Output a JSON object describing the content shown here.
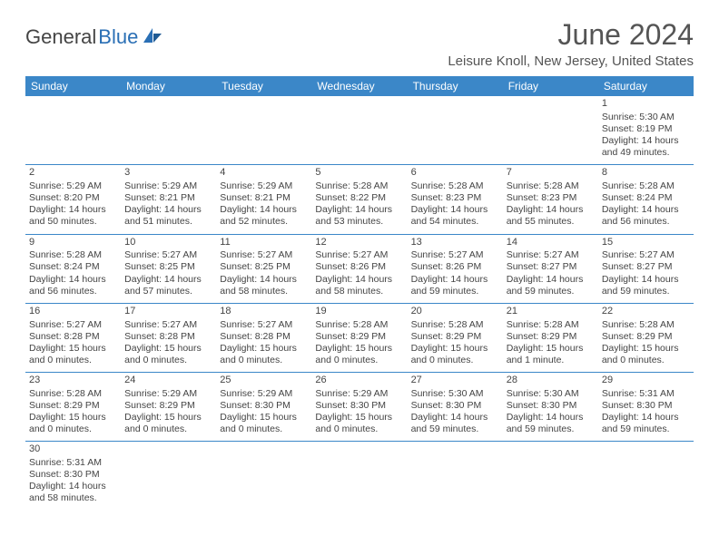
{
  "logo": {
    "part1": "General",
    "part2": "Blue"
  },
  "title": "June 2024",
  "location": "Leisure Knoll, New Jersey, United States",
  "colors": {
    "header_bg": "#3b87c8",
    "header_text": "#ffffff",
    "border": "#3b87c8",
    "text": "#444444",
    "logo_blue": "#2a6fb5"
  },
  "day_headers": [
    "Sunday",
    "Monday",
    "Tuesday",
    "Wednesday",
    "Thursday",
    "Friday",
    "Saturday"
  ],
  "weeks": [
    [
      null,
      null,
      null,
      null,
      null,
      null,
      {
        "n": "1",
        "sr": "5:30 AM",
        "ss": "8:19 PM",
        "dl": "14 hours and 49 minutes."
      }
    ],
    [
      {
        "n": "2",
        "sr": "5:29 AM",
        "ss": "8:20 PM",
        "dl": "14 hours and 50 minutes."
      },
      {
        "n": "3",
        "sr": "5:29 AM",
        "ss": "8:21 PM",
        "dl": "14 hours and 51 minutes."
      },
      {
        "n": "4",
        "sr": "5:29 AM",
        "ss": "8:21 PM",
        "dl": "14 hours and 52 minutes."
      },
      {
        "n": "5",
        "sr": "5:28 AM",
        "ss": "8:22 PM",
        "dl": "14 hours and 53 minutes."
      },
      {
        "n": "6",
        "sr": "5:28 AM",
        "ss": "8:23 PM",
        "dl": "14 hours and 54 minutes."
      },
      {
        "n": "7",
        "sr": "5:28 AM",
        "ss": "8:23 PM",
        "dl": "14 hours and 55 minutes."
      },
      {
        "n": "8",
        "sr": "5:28 AM",
        "ss": "8:24 PM",
        "dl": "14 hours and 56 minutes."
      }
    ],
    [
      {
        "n": "9",
        "sr": "5:28 AM",
        "ss": "8:24 PM",
        "dl": "14 hours and 56 minutes."
      },
      {
        "n": "10",
        "sr": "5:27 AM",
        "ss": "8:25 PM",
        "dl": "14 hours and 57 minutes."
      },
      {
        "n": "11",
        "sr": "5:27 AM",
        "ss": "8:25 PM",
        "dl": "14 hours and 58 minutes."
      },
      {
        "n": "12",
        "sr": "5:27 AM",
        "ss": "8:26 PM",
        "dl": "14 hours and 58 minutes."
      },
      {
        "n": "13",
        "sr": "5:27 AM",
        "ss": "8:26 PM",
        "dl": "14 hours and 59 minutes."
      },
      {
        "n": "14",
        "sr": "5:27 AM",
        "ss": "8:27 PM",
        "dl": "14 hours and 59 minutes."
      },
      {
        "n": "15",
        "sr": "5:27 AM",
        "ss": "8:27 PM",
        "dl": "14 hours and 59 minutes."
      }
    ],
    [
      {
        "n": "16",
        "sr": "5:27 AM",
        "ss": "8:28 PM",
        "dl": "15 hours and 0 minutes."
      },
      {
        "n": "17",
        "sr": "5:27 AM",
        "ss": "8:28 PM",
        "dl": "15 hours and 0 minutes."
      },
      {
        "n": "18",
        "sr": "5:27 AM",
        "ss": "8:28 PM",
        "dl": "15 hours and 0 minutes."
      },
      {
        "n": "19",
        "sr": "5:28 AM",
        "ss": "8:29 PM",
        "dl": "15 hours and 0 minutes."
      },
      {
        "n": "20",
        "sr": "5:28 AM",
        "ss": "8:29 PM",
        "dl": "15 hours and 0 minutes."
      },
      {
        "n": "21",
        "sr": "5:28 AM",
        "ss": "8:29 PM",
        "dl": "15 hours and 1 minute."
      },
      {
        "n": "22",
        "sr": "5:28 AM",
        "ss": "8:29 PM",
        "dl": "15 hours and 0 minutes."
      }
    ],
    [
      {
        "n": "23",
        "sr": "5:28 AM",
        "ss": "8:29 PM",
        "dl": "15 hours and 0 minutes."
      },
      {
        "n": "24",
        "sr": "5:29 AM",
        "ss": "8:29 PM",
        "dl": "15 hours and 0 minutes."
      },
      {
        "n": "25",
        "sr": "5:29 AM",
        "ss": "8:30 PM",
        "dl": "15 hours and 0 minutes."
      },
      {
        "n": "26",
        "sr": "5:29 AM",
        "ss": "8:30 PM",
        "dl": "15 hours and 0 minutes."
      },
      {
        "n": "27",
        "sr": "5:30 AM",
        "ss": "8:30 PM",
        "dl": "14 hours and 59 minutes."
      },
      {
        "n": "28",
        "sr": "5:30 AM",
        "ss": "8:30 PM",
        "dl": "14 hours and 59 minutes."
      },
      {
        "n": "29",
        "sr": "5:31 AM",
        "ss": "8:30 PM",
        "dl": "14 hours and 59 minutes."
      }
    ],
    [
      {
        "n": "30",
        "sr": "5:31 AM",
        "ss": "8:30 PM",
        "dl": "14 hours and 58 minutes."
      },
      null,
      null,
      null,
      null,
      null,
      null
    ]
  ],
  "labels": {
    "sunrise": "Sunrise: ",
    "sunset": "Sunset: ",
    "daylight": "Daylight: "
  }
}
